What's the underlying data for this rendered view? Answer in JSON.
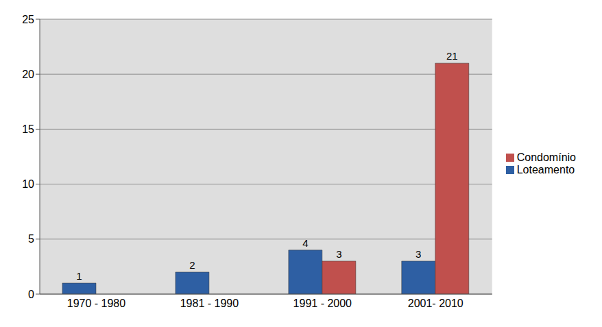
{
  "chart_data": {
    "type": "bar",
    "categories": [
      "1970 - 1980",
      "1981 - 1990",
      "1991 - 2000",
      "2001- 2010"
    ],
    "series": [
      {
        "name": "Loteamento",
        "color": "#2e5fa3",
        "values": [
          1,
          2,
          4,
          3
        ]
      },
      {
        "name": "Condomínio",
        "color": "#c0504d",
        "values": [
          null,
          null,
          3,
          21
        ]
      }
    ],
    "ylim": [
      0,
      25
    ],
    "yticks": [
      0,
      5,
      10,
      15,
      20,
      25
    ],
    "grid": true,
    "legend": "right",
    "data_labels": true
  }
}
